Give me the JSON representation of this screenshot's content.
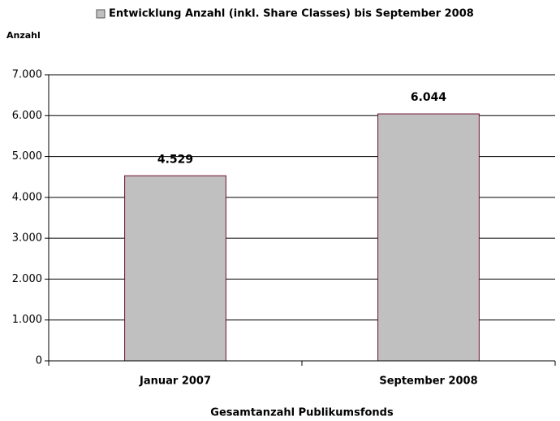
{
  "chart_data": {
    "type": "bar",
    "y_label": "Anzahl",
    "x_label": "Gesamtanzahl Publikumsfonds",
    "categories": [
      "Januar 2007",
      "September 2008"
    ],
    "series": [
      {
        "name": "Entwicklung Anzahl (inkl. Share Classes) bis September 2008",
        "color": "#c0c0c0",
        "values": [
          4529,
          6044
        ],
        "value_labels": [
          "4.529",
          "6.044"
        ]
      }
    ],
    "ylim": [
      0,
      7000
    ],
    "yticks": [
      0,
      {
        "value": 1000,
        "label": "1.000"
      },
      {
        "value": 2000,
        "label": "2.000"
      },
      {
        "value": 3000,
        "label": "3.000"
      },
      {
        "value": 4000,
        "label": "4.000"
      },
      {
        "value": 5000,
        "label": "5.000"
      },
      {
        "value": 6000,
        "label": "6.000"
      },
      {
        "value": 7000,
        "label": "7.000"
      }
    ],
    "grid": true,
    "legend": "top"
  }
}
